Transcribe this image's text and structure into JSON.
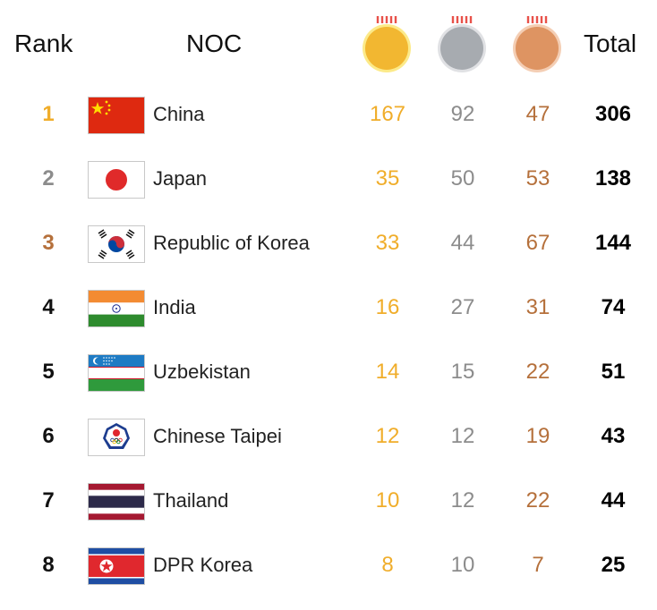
{
  "header": {
    "rank_label": "Rank",
    "noc_label": "NOC",
    "total_label": "Total",
    "medal_icons": [
      "gold-medal-icon",
      "silver-medal-icon",
      "bronze-medal-icon"
    ]
  },
  "colors": {
    "gold": "#f0ad2a",
    "silver": "#8c8c8c",
    "bronze": "#b5703b",
    "rank1": "#f0ad2a",
    "rank2": "#8c8c8c",
    "rank3": "#b5703b",
    "default": "#000000"
  },
  "rows": [
    {
      "rank": "1",
      "country": "China",
      "flag": "china-flag-icon",
      "gold": "167",
      "silver": "92",
      "bronze": "47",
      "total": "306"
    },
    {
      "rank": "2",
      "country": "Japan",
      "flag": "japan-flag-icon",
      "gold": "35",
      "silver": "50",
      "bronze": "53",
      "total": "138"
    },
    {
      "rank": "3",
      "country": "Republic of Korea",
      "flag": "korea-flag-icon",
      "gold": "33",
      "silver": "44",
      "bronze": "67",
      "total": "144"
    },
    {
      "rank": "4",
      "country": "India",
      "flag": "india-flag-icon",
      "gold": "16",
      "silver": "27",
      "bronze": "31",
      "total": "74"
    },
    {
      "rank": "5",
      "country": "Uzbekistan",
      "flag": "uzbekistan-flag-icon",
      "gold": "14",
      "silver": "15",
      "bronze": "22",
      "total": "51"
    },
    {
      "rank": "6",
      "country": "Chinese Taipei",
      "flag": "chinese-taipei-flag-icon",
      "gold": "12",
      "silver": "12",
      "bronze": "19",
      "total": "43"
    },
    {
      "rank": "7",
      "country": "Thailand",
      "flag": "thailand-flag-icon",
      "gold": "10",
      "silver": "12",
      "bronze": "22",
      "total": "44"
    },
    {
      "rank": "8",
      "country": "DPR Korea",
      "flag": "dpr-korea-flag-icon",
      "gold": "8",
      "silver": "10",
      "bronze": "7",
      "total": "25"
    }
  ]
}
